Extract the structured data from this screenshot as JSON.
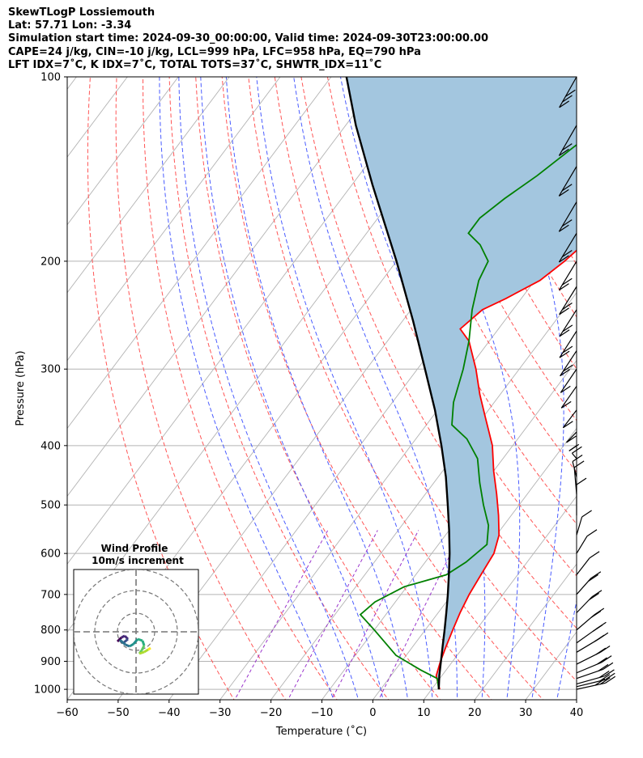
{
  "header": {
    "lines": [
      "SkewTLogP Lossiemouth",
      "Lat: 57.71    Lon: -3.34",
      "Simulation start time: 2024-09-30_00:00:00, Valid time: 2024-09-30T23:00:00.00",
      "CAPE=24 j/kg, CIN=-10 j/kg, LCL=999 hPa, LFC=958 hPa, EQ=790 hPa",
      "LFT IDX=7˚C, K IDX=7˚C, TOTAL TOTS=37˚C, SHWTR_IDX=11˚C"
    ]
  },
  "colors": {
    "temperature": "#ff0000",
    "dewpoint": "#008000",
    "parcel": "#000000",
    "cape_fill": "#a3c6df",
    "dry_adiabat": "#ff5555",
    "moist_adiabat": "#4a5cff",
    "mixing_ratio": "#9933cc",
    "isotherm": "#b3b3b3"
  },
  "hodograph": {
    "title_line1": "Wind Profile",
    "title_line2": "10m/s increment"
  },
  "chart_data": {
    "type": "line",
    "skew": true,
    "xlabel": "Temperature (˚C)",
    "ylabel": "Pressure (hPa)",
    "xlim": [
      -60,
      40
    ],
    "ylim": [
      1040,
      100
    ],
    "y_scale": "log",
    "x_ticks": [
      "−60",
      "−50",
      "−40",
      "−30",
      "−20",
      "−10",
      "0",
      "10",
      "20",
      "30",
      "40"
    ],
    "y_ticks": [
      "1000",
      "900",
      "800",
      "700",
      "600",
      "500",
      "400",
      "300",
      "200",
      "100"
    ],
    "grid": true,
    "series": [
      {
        "key": "temperature",
        "points": [
          [
            1000,
            11.6
          ],
          [
            980,
            10.5
          ],
          [
            950,
            8.9
          ],
          [
            900,
            7.6
          ],
          [
            850,
            6.5
          ],
          [
            800,
            5.4
          ],
          [
            750,
            4.3
          ],
          [
            700,
            3.4
          ],
          [
            650,
            2.8
          ],
          [
            600,
            2.2
          ],
          [
            560,
            0.5
          ],
          [
            520,
            -2.5
          ],
          [
            480,
            -6
          ],
          [
            440,
            -10
          ],
          [
            400,
            -14
          ],
          [
            360,
            -19.5
          ],
          [
            330,
            -24
          ],
          [
            300,
            -28.5
          ],
          [
            270,
            -34
          ],
          [
            258,
            -37.5
          ],
          [
            240,
            -36
          ],
          [
            230,
            -33
          ],
          [
            215,
            -29
          ],
          [
            200,
            -27
          ],
          [
            180,
            -25
          ],
          [
            165,
            -24
          ],
          [
            150,
            -23.5
          ],
          [
            140,
            -22
          ],
          [
            130,
            -24
          ],
          [
            115,
            -27
          ],
          [
            100,
            -30.5
          ]
        ]
      },
      {
        "key": "dewpoint",
        "points": [
          [
            1000,
            11.4
          ],
          [
            960,
            9.5
          ],
          [
            930,
            5
          ],
          [
            880,
            -2
          ],
          [
            800,
            -10
          ],
          [
            755,
            -15
          ],
          [
            720,
            -14
          ],
          [
            680,
            -10.5
          ],
          [
            650,
            -4
          ],
          [
            620,
            -2
          ],
          [
            580,
            -0.5
          ],
          [
            540,
            -3
          ],
          [
            500,
            -7
          ],
          [
            460,
            -11
          ],
          [
            420,
            -15
          ],
          [
            390,
            -20
          ],
          [
            370,
            -25
          ],
          [
            340,
            -28
          ],
          [
            300,
            -31
          ],
          [
            270,
            -34
          ],
          [
            240,
            -38
          ],
          [
            215,
            -41
          ],
          [
            200,
            -42
          ],
          [
            188,
            -46
          ],
          [
            180,
            -50
          ],
          [
            170,
            -50
          ],
          [
            158,
            -48
          ],
          [
            145,
            -45
          ],
          [
            130,
            -42
          ],
          [
            115,
            -38
          ],
          [
            100,
            -34.5
          ]
        ]
      },
      {
        "key": "parcel",
        "points": [
          [
            1000,
            11.4
          ],
          [
            950,
            9.5
          ],
          [
            900,
            7.7
          ],
          [
            850,
            5.8
          ],
          [
            800,
            3.8
          ],
          [
            750,
            1.6
          ],
          [
            700,
            -0.8
          ],
          [
            650,
            -3.5
          ],
          [
            600,
            -6.5
          ],
          [
            550,
            -10
          ],
          [
            500,
            -14
          ],
          [
            450,
            -18.5
          ],
          [
            400,
            -24
          ],
          [
            350,
            -30.5
          ],
          [
            300,
            -38.5
          ],
          [
            250,
            -48
          ],
          [
            200,
            -60
          ],
          [
            150,
            -76
          ],
          [
            120,
            -88
          ],
          [
            100,
            -97
          ]
        ]
      }
    ]
  }
}
